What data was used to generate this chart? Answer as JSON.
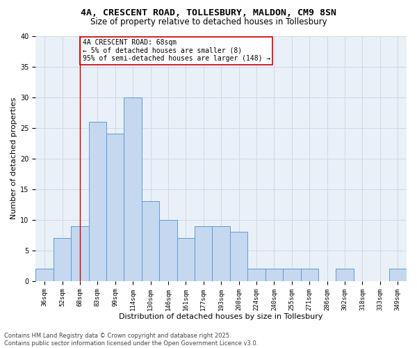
{
  "title_line1": "4A, CRESCENT ROAD, TOLLESBURY, MALDON, CM9 8SN",
  "title_line2": "Size of property relative to detached houses in Tollesbury",
  "xlabel": "Distribution of detached houses by size in Tollesbury",
  "ylabel": "Number of detached properties",
  "categories": [
    "36sqm",
    "52sqm",
    "68sqm",
    "83sqm",
    "99sqm",
    "114sqm",
    "130sqm",
    "146sqm",
    "161sqm",
    "177sqm",
    "193sqm",
    "208sqm",
    "224sqm",
    "240sqm",
    "255sqm",
    "271sqm",
    "286sqm",
    "302sqm",
    "318sqm",
    "333sqm",
    "349sqm"
  ],
  "values": [
    2,
    7,
    9,
    26,
    24,
    30,
    13,
    10,
    7,
    9,
    9,
    8,
    2,
    2,
    2,
    2,
    0,
    2,
    0,
    0,
    2
  ],
  "bar_color": "#c5d8f0",
  "bar_edge_color": "#5b9bd5",
  "vline_x_idx": 2,
  "vline_color": "#cc0000",
  "annotation_text": "4A CRESCENT ROAD: 68sqm\n← 5% of detached houses are smaller (8)\n95% of semi-detached houses are larger (148) →",
  "annotation_box_color": "#cc0000",
  "ylim": [
    0,
    40
  ],
  "yticks": [
    0,
    5,
    10,
    15,
    20,
    25,
    30,
    35,
    40
  ],
  "grid_color": "#d0d8e8",
  "bg_color": "#eaf0f8",
  "footer_text": "Contains HM Land Registry data © Crown copyright and database right 2025.\nContains public sector information licensed under the Open Government Licence v3.0.",
  "title_fontsize": 9.5,
  "subtitle_fontsize": 8.5,
  "axis_label_fontsize": 8,
  "tick_fontsize": 6.5,
  "annotation_fontsize": 7,
  "footer_fontsize": 6
}
